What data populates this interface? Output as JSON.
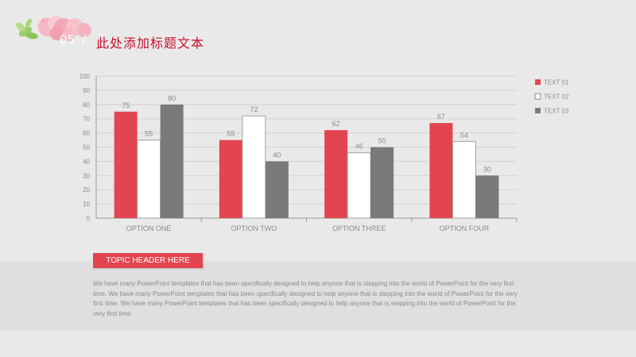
{
  "header": {
    "number": "05",
    "slash": "/",
    "title": "此处添加标题文本"
  },
  "topic": {
    "label": "TOPIC HEADER HERE"
  },
  "body_text": "We have many PowerPoint templates that has been specifically designed to help anyone that is stepping into the world of PowerPoint for the very first time. We have many PowerPoint templates that has been specifically designed to help anyone that is stepping into the world of PowerPoint for the very first time. We have many PowerPoint templates that has been specifically designed to help anyone that is stepping into the world of PowerPoint for the very first time.",
  "colors": {
    "series1": "#e2454f",
    "series2": "#ffffff",
    "series3": "#7a7a7a",
    "accent": "#c8102e"
  },
  "chart_data": {
    "type": "bar",
    "categories": [
      "OPTION ONE",
      "OPTION TWO",
      "OPTION THREE",
      "OPTION FOUR"
    ],
    "series": [
      {
        "name": "TEXT 01",
        "values": [
          75,
          55,
          62,
          67
        ]
      },
      {
        "name": "TEXT 02",
        "values": [
          55,
          72,
          46,
          54
        ]
      },
      {
        "name": "TEXT 03",
        "values": [
          80,
          40,
          50,
          30
        ]
      }
    ],
    "yticks": [
      0,
      10,
      20,
      30,
      40,
      50,
      60,
      70,
      80,
      90,
      100
    ],
    "ylim": [
      0,
      100
    ],
    "grid": true,
    "legend": "right",
    "data_labels": true
  }
}
